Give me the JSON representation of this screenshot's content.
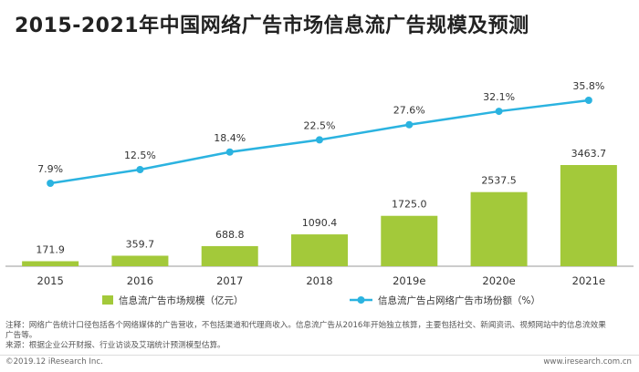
{
  "chart_data": {
    "title": "2015-2021年中国网络广告市场信息流广告规模及预测",
    "categories": [
      "2015",
      "2016",
      "2017",
      "2018",
      "2019e",
      "2020e",
      "2021e"
    ],
    "series": [
      {
        "name": "信息流广告市场规模（亿元）",
        "type": "bar",
        "values": [
          171.9,
          359.7,
          688.8,
          1090.4,
          1725.0,
          2537.5,
          3463.7
        ],
        "labels": [
          "171.9",
          "359.7",
          "688.8",
          "1090.4",
          "1725.0",
          "2537.5",
          "3463.7"
        ],
        "color": "#a3c93a"
      },
      {
        "name": "信息流广告占网络广告市场份额（%）",
        "type": "line",
        "values": [
          7.9,
          12.5,
          18.4,
          22.5,
          27.6,
          32.1,
          35.8
        ],
        "labels": [
          "7.9%",
          "12.5%",
          "18.4%",
          "22.5%",
          "27.6%",
          "32.1%",
          "35.8%"
        ],
        "color": "#2bb3e0"
      }
    ],
    "legend_position": "bottom"
  },
  "notes": {
    "line1": "注释：网络广告统计口径包括各个网络媒体的广告营收，不包括渠道和代理商收入。信息流广告从2016年开始独立核算，主要包括社交、新闻资讯、视频网站中的信息流效果",
    "line1b": "广告等。",
    "line2": "来源：根据企业公开财报、行业访谈及艾瑞统计预测模型估算。"
  },
  "footer": {
    "copyright": "©2019.12 iResearch Inc.",
    "website": "www.iresearch.com.cn"
  }
}
